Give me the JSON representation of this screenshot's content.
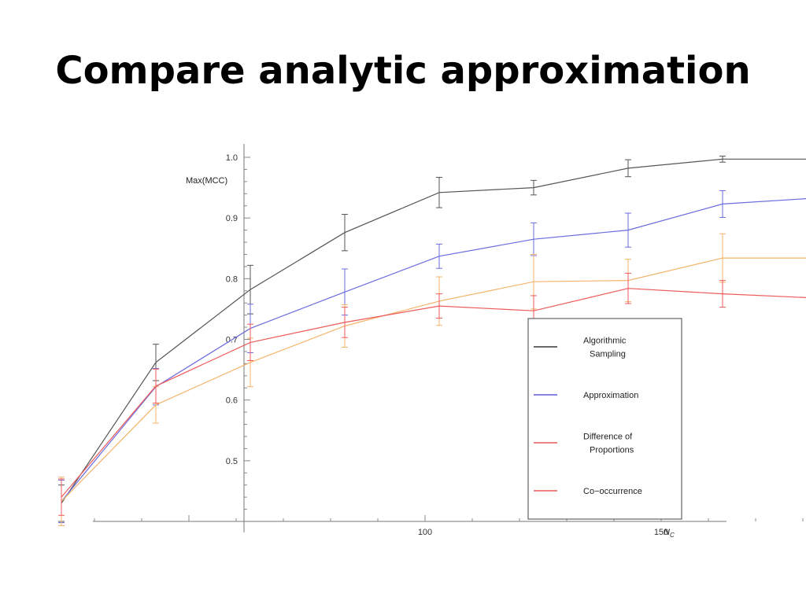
{
  "slide": {
    "title": "Compare analytic approximation"
  },
  "chart_data": {
    "type": "line",
    "title": "",
    "ylabel": "Max(MCC)",
    "xlabel": "N_C",
    "xlabel_display": "N",
    "xlabel_sub": "C",
    "xlim": [
      20,
      180
    ],
    "ylim": [
      0.4,
      1.0
    ],
    "x_ticks": [
      100,
      150
    ],
    "y_ticks": [
      0.5,
      0.6,
      0.7,
      0.8,
      0.9,
      1.0
    ],
    "x_ticks_labels": [
      "100",
      "150"
    ],
    "y_ticks_labels": [
      "0.5",
      "0.6",
      "0.7",
      "0.8",
      "0.9",
      "1.0"
    ],
    "x": [
      23,
      43,
      63,
      83,
      103,
      123,
      143,
      163,
      183
    ],
    "legend_position": "bottom-right",
    "series": [
      {
        "name": "Algorithmic Sampling",
        "color": "#555555",
        "values": [
          0.43,
          0.662,
          0.782,
          0.876,
          0.942,
          0.95,
          0.982,
          0.997,
          0.997
        ],
        "errors": [
          0.03,
          0.03,
          0.04,
          0.03,
          0.025,
          0.012,
          0.014,
          0.005,
          0.006
        ]
      },
      {
        "name": "Approximation",
        "color": "#6b6bdf",
        "values": [
          0.433,
          0.622,
          0.718,
          0.778,
          0.837,
          0.865,
          0.88,
          0.923,
          0.933
        ],
        "errors": [
          0.035,
          0.03,
          0.04,
          0.038,
          0.02,
          0.027,
          0.028,
          0.022,
          0.04
        ]
      },
      {
        "name": "Difference of Proportions",
        "color": "#f4b36a",
        "values": [
          0.433,
          0.592,
          0.662,
          0.722,
          0.763,
          0.795,
          0.797,
          0.834,
          0.834
        ],
        "errors": [
          0.04,
          0.03,
          0.04,
          0.035,
          0.04,
          0.045,
          0.035,
          0.04,
          0.03
        ]
      },
      {
        "name": "Co-occurrence",
        "color": "#ee5a5a",
        "values": [
          0.44,
          0.623,
          0.695,
          0.728,
          0.755,
          0.747,
          0.784,
          0.775,
          0.768
        ],
        "errors": [
          0.03,
          0.028,
          0.03,
          0.025,
          0.02,
          0.025,
          0.025,
          0.022,
          0.015
        ]
      }
    ],
    "legend": [
      {
        "lines": [
          "Algorithmic",
          "Sampling"
        ],
        "color": "#111111"
      },
      {
        "lines": [
          "Approximation"
        ],
        "color": "#3a3ad0"
      },
      {
        "lines": [
          "Difference of",
          "Proportions"
        ],
        "color": "#e23a3a"
      },
      {
        "lines": [
          "Co−occurrence"
        ],
        "color": "#e23a3a"
      }
    ]
  }
}
